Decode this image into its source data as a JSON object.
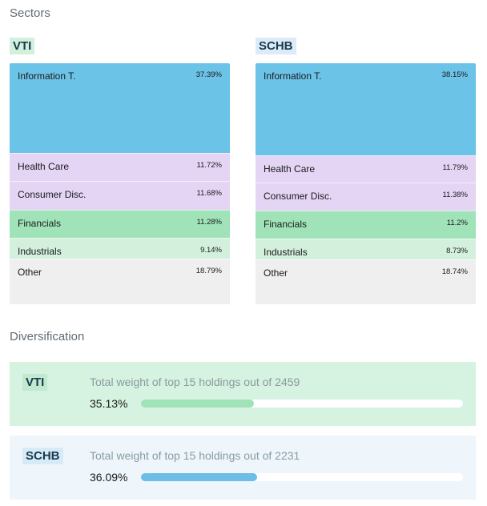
{
  "sectors_title": "Sectors",
  "diversification_title": "Diversification",
  "colors": {
    "info": "#6cc3e8",
    "health": "#e4d5f5",
    "consumer": "#e4d5f5",
    "financials": "#a0e3b8",
    "industrials": "#d3f0dd",
    "other": "#efefef"
  },
  "funds": [
    {
      "ticker": "VTI",
      "tag_color": "#d3f0dd",
      "sectors": [
        {
          "name": "Information T.",
          "value": "37.39%"
        },
        {
          "name": "Health Care",
          "value": "11.72%"
        },
        {
          "name": "Consumer Disc.",
          "value": "11.68%"
        },
        {
          "name": "Financials",
          "value": "11.28%"
        },
        {
          "name": "Industrials",
          "value": "9.14%"
        },
        {
          "name": "Other",
          "value": "18.79%"
        }
      ],
      "diversification": {
        "label": "Total weight of top 15 holdings out of 2459",
        "percent": "35.13%",
        "fraction": 0.3513,
        "bar_color": "#a0e3b8",
        "bg": "#d6f2e0"
      }
    },
    {
      "ticker": "SCHB",
      "tag_color": "#dcebf7",
      "sectors": [
        {
          "name": "Information T.",
          "value": "38.15%"
        },
        {
          "name": "Health Care",
          "value": "11.79%"
        },
        {
          "name": "Consumer Disc.",
          "value": "11.38%"
        },
        {
          "name": "Financials",
          "value": "11.2%"
        },
        {
          "name": "Industrials",
          "value": "8.73%"
        },
        {
          "name": "Other",
          "value": "18.74%"
        }
      ],
      "diversification": {
        "label": "Total weight of top 15 holdings out of 2231",
        "percent": "36.09%",
        "fraction": 0.3609,
        "bar_color": "#6cbde8",
        "bg": "#eef6fc"
      }
    }
  ]
}
